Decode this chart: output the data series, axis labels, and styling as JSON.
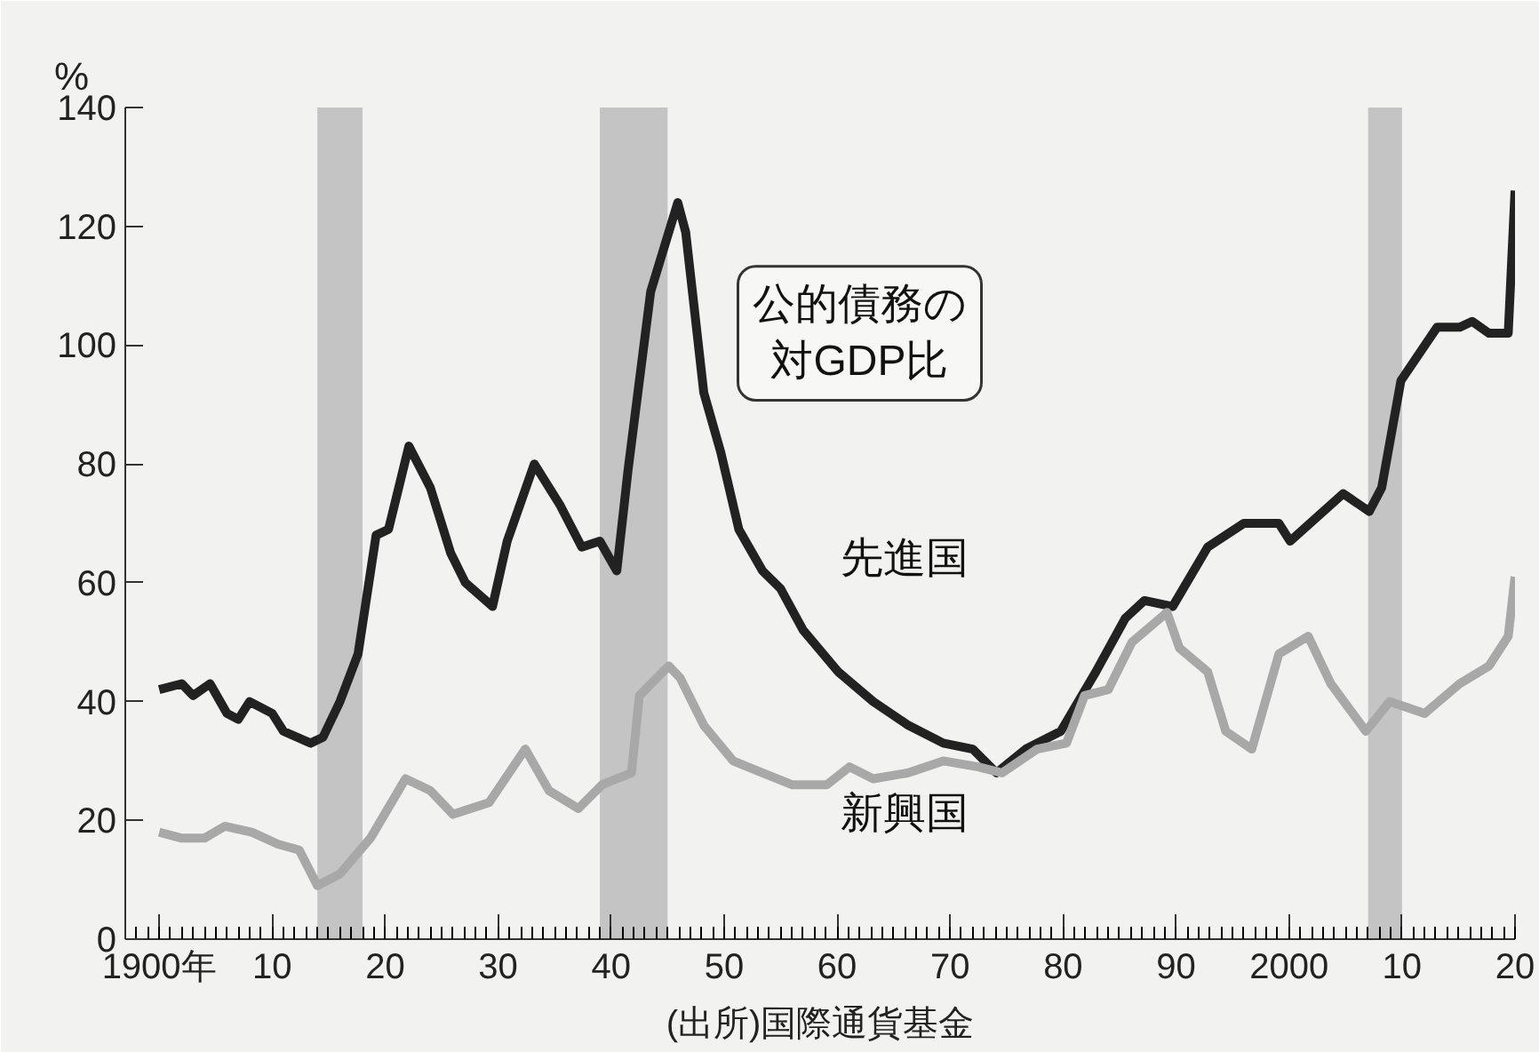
{
  "chart_data": {
    "type": "line",
    "title": "公的債務の対GDP比",
    "ylabel": "%",
    "annotations": [
      "(出所)国際通貨基金"
    ],
    "xlim": [
      1897,
      2020
    ],
    "xticks": [
      {
        "value": 1900,
        "label": "1900年"
      },
      {
        "value": 1910,
        "label": "10"
      },
      {
        "value": 1920,
        "label": "20"
      },
      {
        "value": 1930,
        "label": "30"
      },
      {
        "value": 1940,
        "label": "40"
      },
      {
        "value": 1950,
        "label": "50"
      },
      {
        "value": 1960,
        "label": "60"
      },
      {
        "value": 1970,
        "label": "70"
      },
      {
        "value": 1980,
        "label": "80"
      },
      {
        "value": 1990,
        "label": "90"
      },
      2000,
      {
        "value": 2010,
        "label": "10"
      },
      {
        "value": 2020,
        "label": "20"
      }
    ],
    "ylim": [
      0,
      140
    ],
    "yticks": [
      0,
      20,
      40,
      60,
      80,
      100,
      120,
      140
    ],
    "grid": false,
    "bands": [
      {
        "axis": "x",
        "from": 1914,
        "to": 1918,
        "color": "#c4c4c4"
      },
      {
        "axis": "x",
        "from": 1939,
        "to": 1945,
        "color": "#c4c4c4"
      },
      {
        "axis": "x",
        "from": 2007,
        "to": 2010,
        "color": "#c4c4c4"
      }
    ],
    "series": [
      {
        "name": "先進国",
        "color": "#222222",
        "x": [
          1900,
          1902,
          1903,
          1904.5,
          1906,
          1907,
          1908,
          1910,
          1911,
          1913.4,
          1914.5,
          1916,
          1917.6,
          1919.2,
          1920.3,
          1922.1,
          1924,
          1925.8,
          1927.1,
          1929.5,
          1930.8,
          1933.2,
          1935.5,
          1937.4,
          1939,
          1940.5,
          1941.5,
          1943.5,
          1945.9,
          1946.6,
          1948.2,
          1949.7,
          1951.3,
          1953.4,
          1955,
          1957,
          1960.1,
          1963.2,
          1966.3,
          1969.4,
          1972,
          1974.1,
          1976.7,
          1979.8,
          1982.9,
          1985.5,
          1987.2,
          1989.7,
          1992.8,
          1996,
          1999.1,
          2000.1,
          2004.8,
          2007.1,
          2008.2,
          2009.9,
          2013.1,
          2015.1,
          2016.2,
          2017.7,
          2019.4,
          2020
        ],
        "values": [
          42,
          43,
          41,
          43,
          38,
          37,
          40,
          38,
          35,
          33,
          34,
          40,
          48,
          68,
          69,
          83,
          76,
          65,
          60,
          56,
          67,
          80,
          73,
          66,
          67,
          62,
          79,
          109,
          124,
          119,
          92,
          82,
          69,
          62,
          59,
          52,
          45,
          40,
          36,
          33,
          32,
          28,
          32,
          35,
          45,
          54,
          57,
          56,
          66,
          70,
          70,
          67,
          75,
          72,
          76,
          94,
          103,
          103,
          104,
          102,
          102,
          126
        ]
      },
      {
        "name": "新興国",
        "color": "#a8a8a8",
        "x": [
          1900,
          1902,
          1904,
          1905.8,
          1908.2,
          1910.5,
          1912.4,
          1914,
          1916,
          1918.7,
          1921.8,
          1924,
          1926,
          1929.2,
          1932.4,
          1934.5,
          1937.1,
          1939.2,
          1941.8,
          1942.5,
          1945.1,
          1946.1,
          1948.2,
          1950.8,
          1953.4,
          1956,
          1959.1,
          1961.1,
          1963.2,
          1966.3,
          1969.4,
          1972.5,
          1974.6,
          1977.7,
          1980.3,
          1981.9,
          1984,
          1986.1,
          1989.2,
          1990.3,
          1992.8,
          1994.4,
          1996.7,
          1999.1,
          2001.7,
          2003.7,
          2006.8,
          2008.9,
          2012,
          2015.1,
          2017.7,
          2019.4,
          2020
        ],
        "values": [
          18,
          17,
          17,
          19,
          18,
          16,
          15,
          9,
          11,
          17,
          27,
          25,
          21,
          23,
          32,
          25,
          22,
          26,
          28,
          41,
          46,
          44,
          36,
          30,
          28,
          26,
          26,
          29,
          27,
          28,
          30,
          29,
          28,
          32,
          33,
          41,
          42,
          50,
          55,
          49,
          45,
          35,
          32,
          48,
          51,
          43,
          35,
          40,
          38,
          43,
          46,
          51,
          61
        ]
      }
    ]
  }
}
